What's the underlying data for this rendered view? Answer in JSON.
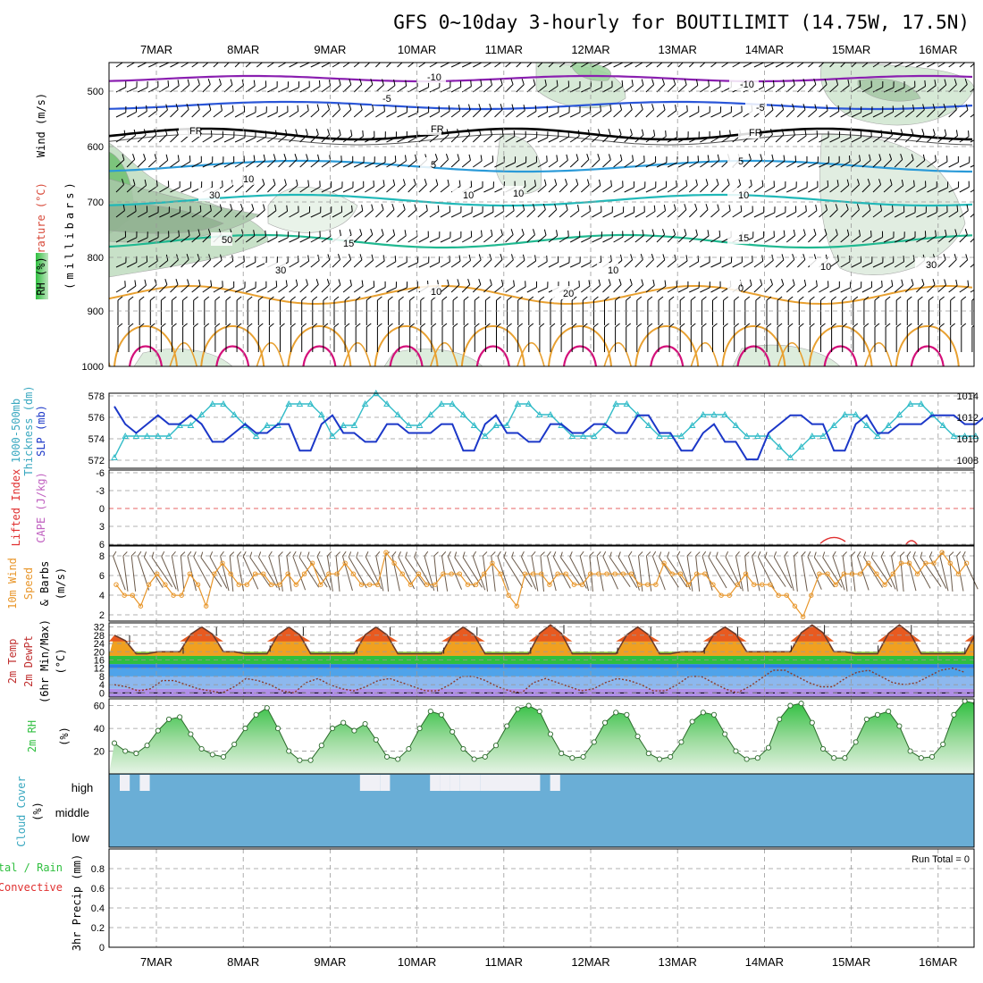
{
  "title": "GFS 0~10day 3-hourly for BOUTILIMIT (14.75W, 17.5N)",
  "dates": [
    "7MAR",
    "8MAR",
    "9MAR",
    "10MAR",
    "11MAR",
    "12MAR",
    "13MAR",
    "14MAR",
    "15MAR",
    "16MAR"
  ],
  "colors": {
    "temp_warm": "#e8a030",
    "temp_hot": "#d4107a",
    "fr": "#000000",
    "cold10": "#8a1fb0",
    "cold5": "#2a56d8",
    "warm5": "#2a9ad8",
    "warm10": "#20b8b8",
    "warm15": "#20b890",
    "rh": "#2fbf3f",
    "slp": "#1b37c8",
    "thick": "#33bcc8",
    "wind10": "#e8962a",
    "cloud": "#6aaed6"
  },
  "panels": {
    "upper": {
      "ylabels": [
        "Wind (m/s)",
        "Temperature (°C)",
        "RH (%)",
        "(millibars)"
      ],
      "pressure_ticks": [
        "500",
        "600",
        "700",
        "800",
        "900",
        "1000"
      ],
      "contour_labels": [
        "-10",
        "-10",
        "-5",
        "-5",
        "FR",
        "FR",
        "FR",
        "5",
        "5",
        "10",
        "10",
        "15",
        "15",
        "20",
        "10",
        "10",
        "10",
        "30",
        "30",
        "50",
        "10",
        "10",
        "0",
        "10",
        "30"
      ]
    },
    "slp": {
      "ylabels": [
        "1000-500mb",
        "Thickness (dm)",
        "SLP (mb)"
      ],
      "left_ticks": [
        "578",
        "576",
        "574",
        "572"
      ],
      "right_ticks": [
        "1014",
        "1012",
        "1010",
        "1008"
      ]
    },
    "li": {
      "ylabels": [
        "Lifted Index",
        "CAPE (J/kg)"
      ],
      "ticks": [
        "-6",
        "-3",
        "0",
        "3",
        "6"
      ]
    },
    "wind": {
      "ylabels": [
        "10m Wind",
        "Speed",
        "& Barbs",
        "(m/s)"
      ],
      "ticks": [
        "8",
        "6",
        "4",
        "2"
      ]
    },
    "temp": {
      "ylabels": [
        "2m Temp",
        "2m DewPt",
        "(6hr Min/Max)",
        "(°C)"
      ],
      "ticks": [
        "32",
        "28",
        "24",
        "20",
        "16",
        "12",
        "8",
        "4",
        "0"
      ]
    },
    "rh": {
      "ylabels": [
        "2m RH",
        "(%)"
      ],
      "ticks": [
        "60",
        "40",
        "20"
      ]
    },
    "cloud": {
      "ylabels": [
        "Cloud Cover",
        "(%)"
      ],
      "levels": [
        "high",
        "middle",
        "low"
      ]
    },
    "precip": {
      "ylabels": [
        "Total / Rain",
        "Convective",
        "3hr Precip (mm)"
      ],
      "run_total": "Run Total = 0",
      "ticks": [
        "0.8",
        "0.6",
        "0.4",
        "0.2",
        "0"
      ]
    }
  },
  "chart_data": [
    {
      "type": "line",
      "name": "SLP (mb)",
      "x_start": "6MAR 12Z",
      "step_hours": 3,
      "values": [
        1014,
        1012,
        1011,
        1012,
        1013,
        1012,
        1012,
        1013,
        1012,
        1010,
        1010,
        1011,
        1012,
        1011,
        1011,
        1012,
        1012,
        1009,
        1009,
        1012,
        1013,
        1011,
        1011,
        1010,
        1010,
        1012,
        1012,
        1011,
        1011,
        1011,
        1012,
        1012,
        1009,
        1009,
        1012,
        1013,
        1011,
        1011,
        1010,
        1010,
        1012,
        1012,
        1011,
        1011,
        1012,
        1012,
        1011,
        1011,
        1013,
        1013,
        1011,
        1011,
        1009,
        1009,
        1011,
        1012,
        1010,
        1010,
        1008,
        1008,
        1011,
        1012,
        1013,
        1013,
        1012,
        1012,
        1009,
        1009,
        1012,
        1013,
        1011,
        1011,
        1012,
        1012,
        1012,
        1013,
        1013,
        1013,
        1012,
        1012,
        1013
      ]
    },
    {
      "type": "line",
      "name": "1000-500mb Thickness (dm)",
      "x_start": "6MAR 12Z",
      "step_hours": 3,
      "values": [
        572,
        574,
        574,
        574,
        574,
        574,
        575,
        575,
        576,
        577,
        577,
        576,
        575,
        574,
        575,
        575,
        577,
        577,
        577,
        576,
        574,
        575,
        575,
        577,
        578,
        577,
        576,
        575,
        575,
        576,
        577,
        577,
        576,
        575,
        574,
        575,
        575,
        577,
        577,
        576,
        576,
        575,
        574,
        574,
        574,
        575,
        577,
        577,
        576,
        575,
        574,
        574,
        574,
        575,
        576,
        576,
        576,
        575,
        574,
        574,
        574,
        573,
        572,
        573,
        574,
        574,
        575,
        576,
        576,
        575,
        574,
        575,
        576,
        577,
        577,
        576,
        575,
        574,
        574,
        574
      ]
    },
    {
      "type": "line",
      "name": "10m Wind Speed (m/s)",
      "x_start": "6MAR 12Z",
      "step_hours": 3,
      "values": [
        5,
        4,
        4,
        3,
        5,
        6,
        5,
        4,
        4,
        6,
        5,
        3,
        6,
        7,
        6,
        5,
        5,
        6,
        6,
        5,
        5,
        6,
        5,
        6,
        7,
        5,
        6,
        6,
        7,
        6,
        5,
        5,
        5,
        8,
        7,
        6,
        5,
        6,
        5,
        5,
        6,
        6,
        6,
        5,
        5,
        6,
        7,
        6,
        4,
        3,
        6,
        6,
        6,
        5,
        6,
        6,
        5,
        5,
        6,
        6,
        6,
        6,
        6,
        6,
        5,
        5,
        5,
        7,
        6,
        6,
        5,
        6,
        6,
        5,
        4,
        4,
        5,
        6,
        5,
        5,
        5,
        4,
        4,
        3,
        2,
        4,
        6,
        6,
        5,
        6,
        6,
        6,
        7,
        6,
        5,
        6,
        7,
        7,
        6,
        7,
        7,
        8,
        7,
        6,
        7
      ]
    },
    {
      "type": "area",
      "name": "2m Temp (°C)",
      "x_start": "6MAR 12Z",
      "step_hours": 3,
      "days": 10,
      "daily_min": [
        19,
        20,
        19,
        19,
        19,
        19,
        19,
        20,
        20,
        19
      ],
      "daily_max": [
        28,
        32,
        32,
        32,
        32,
        33,
        32,
        32,
        33,
        33
      ]
    },
    {
      "type": "line",
      "name": "2m DewPt (°C)",
      "x_start": "6MAR 12Z",
      "step_hours": 3,
      "values": [
        4,
        3,
        1,
        2,
        6,
        6,
        4,
        2,
        1,
        0,
        3,
        7,
        6,
        4,
        1,
        0,
        5,
        7,
        4,
        2,
        1,
        3,
        6,
        7,
        5,
        3,
        1,
        1,
        4,
        8,
        8,
        6,
        3,
        1,
        0,
        5,
        7,
        5,
        3,
        1,
        2,
        5,
        7,
        6,
        4,
        1,
        1,
        4,
        8,
        8,
        5,
        2,
        0,
        3,
        7,
        11,
        11,
        8,
        5,
        3,
        3,
        7,
        10,
        11,
        8,
        5,
        4,
        5,
        8,
        11,
        12,
        10
      ]
    },
    {
      "type": "area",
      "name": "2m RH (%)",
      "x_start": "6MAR 12Z",
      "step_hours": 3,
      "values": [
        27,
        20,
        18,
        25,
        38,
        48,
        50,
        35,
        22,
        17,
        15,
        26,
        40,
        52,
        58,
        40,
        20,
        12,
        12,
        25,
        40,
        45,
        38,
        44,
        30,
        15,
        13,
        22,
        40,
        55,
        52,
        37,
        22,
        13,
        15,
        25,
        42,
        57,
        60,
        55,
        35,
        18,
        14,
        15,
        28,
        45,
        54,
        52,
        33,
        18,
        13,
        15,
        28,
        46,
        54,
        52,
        35,
        20,
        13,
        14,
        23,
        48,
        60,
        62,
        45,
        22,
        14,
        14,
        28,
        48,
        52,
        55,
        42,
        20,
        14,
        15,
        26,
        52,
        64,
        62
      ]
    },
    {
      "type": "heatmap",
      "name": "Cloud Cover (%)",
      "levels": [
        "high",
        "middle",
        "low"
      ],
      "x_start": "6MAR 12Z",
      "step_hours": 3,
      "high_clear_intervals": [
        [
          0,
          1
        ],
        [
          2,
          3
        ],
        [
          24,
          25
        ],
        [
          25,
          26
        ],
        [
          26,
          27
        ],
        [
          31,
          32
        ],
        [
          32,
          33
        ],
        [
          33,
          34
        ],
        [
          34,
          36
        ],
        [
          36,
          42
        ],
        [
          43,
          44
        ]
      ]
    },
    {
      "type": "bar",
      "name": "3hr Precip (mm)",
      "ylim": [
        0,
        1
      ],
      "values": [],
      "run_total": 0
    }
  ]
}
